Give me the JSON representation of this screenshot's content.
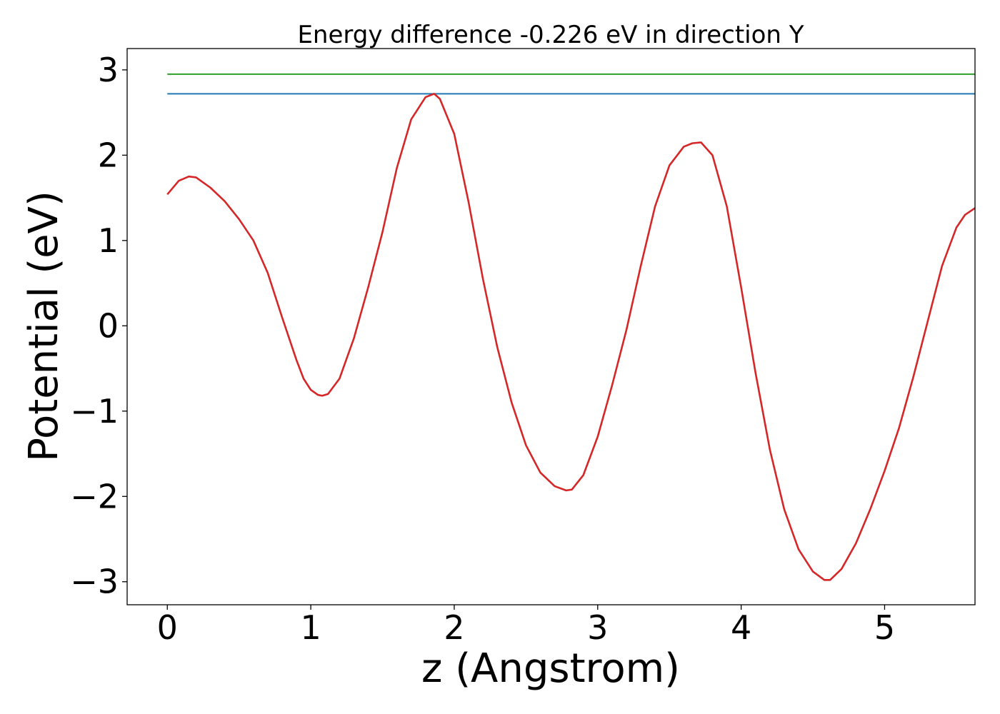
{
  "chart_data": {
    "type": "line",
    "title": "Energy difference -0.226 eV in direction Y",
    "xlabel": "z (Angstrom)",
    "ylabel": "Potential (eV)",
    "xlim": [
      -0.28,
      5.63
    ],
    "ylim": [
      -3.27,
      3.25
    ],
    "xticks": [
      0,
      1,
      2,
      3,
      4,
      5
    ],
    "yticks": [
      -3,
      -2,
      -1,
      0,
      1,
      2,
      3
    ],
    "xtick_labels": [
      "0",
      "1",
      "2",
      "3",
      "4",
      "5"
    ],
    "ytick_labels": [
      "−3",
      "−2",
      "−1",
      "0",
      "1",
      "2",
      "3"
    ],
    "grid": false,
    "series": [
      {
        "color": "#2ca02c",
        "x": [
          0,
          5.63
        ],
        "y": [
          2.95,
          2.95
        ]
      },
      {
        "color": "#1f77b4",
        "x": [
          0,
          5.63
        ],
        "y": [
          2.72,
          2.72
        ]
      },
      {
        "color": "#d62728",
        "x": [
          0,
          0.08,
          0.15,
          0.2,
          0.3,
          0.4,
          0.5,
          0.6,
          0.7,
          0.8,
          0.9,
          0.95,
          1.0,
          1.05,
          1.08,
          1.12,
          1.2,
          1.3,
          1.4,
          1.5,
          1.6,
          1.7,
          1.8,
          1.86,
          1.9,
          2.0,
          2.1,
          2.2,
          2.3,
          2.4,
          2.5,
          2.6,
          2.7,
          2.78,
          2.82,
          2.9,
          3.0,
          3.1,
          3.2,
          3.3,
          3.4,
          3.5,
          3.6,
          3.66,
          3.72,
          3.8,
          3.9,
          4.0,
          4.1,
          4.2,
          4.3,
          4.4,
          4.5,
          4.58,
          4.62,
          4.7,
          4.8,
          4.9,
          5.0,
          5.1,
          5.2,
          5.3,
          5.4,
          5.5,
          5.56,
          5.63
        ],
        "y": [
          1.54,
          1.7,
          1.75,
          1.74,
          1.62,
          1.46,
          1.25,
          1.0,
          0.62,
          0.1,
          -0.4,
          -0.62,
          -0.75,
          -0.81,
          -0.82,
          -0.8,
          -0.62,
          -0.15,
          0.45,
          1.1,
          1.85,
          2.42,
          2.68,
          2.72,
          2.66,
          2.25,
          1.45,
          0.55,
          -0.25,
          -0.9,
          -1.4,
          -1.72,
          -1.88,
          -1.93,
          -1.92,
          -1.75,
          -1.3,
          -0.7,
          -0.05,
          0.7,
          1.4,
          1.88,
          2.1,
          2.14,
          2.15,
          2.0,
          1.4,
          0.45,
          -0.55,
          -1.45,
          -2.15,
          -2.62,
          -2.88,
          -2.98,
          -2.98,
          -2.85,
          -2.55,
          -2.15,
          -1.7,
          -1.2,
          -0.6,
          0.05,
          0.7,
          1.15,
          1.3,
          1.38
        ]
      }
    ]
  }
}
